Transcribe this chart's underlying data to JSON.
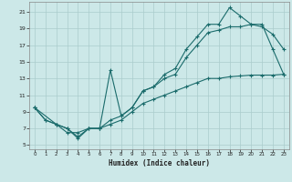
{
  "xlabel": "Humidex (Indice chaleur)",
  "bg_color": "#cce8e8",
  "grid_color": "#aacccc",
  "line_color": "#1a6b6b",
  "xlim": [
    -0.5,
    23.5
  ],
  "ylim": [
    4.5,
    22.2
  ],
  "xticks": [
    0,
    1,
    2,
    3,
    4,
    5,
    6,
    7,
    8,
    9,
    10,
    11,
    12,
    13,
    14,
    15,
    16,
    17,
    18,
    19,
    20,
    21,
    22,
    23
  ],
  "yticks": [
    5,
    7,
    9,
    11,
    13,
    15,
    17,
    19,
    21
  ],
  "line1_x": [
    0,
    1,
    2,
    3,
    4,
    5,
    6,
    7,
    8,
    9,
    10,
    11,
    12,
    13,
    14,
    15,
    16,
    17,
    18,
    19,
    20,
    21,
    22,
    23
  ],
  "line1_y": [
    9.5,
    8.0,
    7.5,
    7.0,
    6.0,
    7.0,
    7.0,
    8.0,
    8.5,
    9.5,
    11.5,
    12.0,
    13.0,
    13.5,
    15.5,
    17.0,
    18.5,
    18.8,
    19.2,
    19.2,
    19.5,
    19.2,
    18.3,
    16.5
  ],
  "line2_x": [
    0,
    1,
    2,
    3,
    4,
    5,
    6,
    7,
    8,
    9,
    10,
    11,
    12,
    13,
    14,
    15,
    16,
    17,
    18,
    19,
    20,
    21,
    22,
    23
  ],
  "line2_y": [
    9.5,
    8.0,
    7.5,
    7.0,
    5.8,
    7.0,
    7.0,
    14.0,
    8.5,
    9.5,
    11.5,
    12.0,
    13.5,
    14.2,
    16.5,
    18.0,
    19.5,
    19.5,
    21.5,
    20.5,
    19.5,
    19.5,
    16.5,
    13.5
  ],
  "line3_x": [
    0,
    2,
    3,
    4,
    5,
    6,
    7,
    8,
    9,
    10,
    11,
    12,
    13,
    14,
    15,
    16,
    17,
    18,
    19,
    20,
    21,
    22,
    23
  ],
  "line3_y": [
    9.5,
    7.5,
    6.5,
    6.5,
    7.0,
    7.0,
    7.5,
    8.0,
    9.0,
    10.0,
    10.5,
    11.0,
    11.5,
    12.0,
    12.5,
    13.0,
    13.0,
    13.2,
    13.3,
    13.4,
    13.4,
    13.4,
    13.5
  ]
}
